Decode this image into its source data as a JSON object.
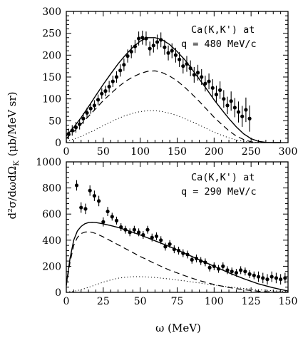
{
  "chart_data": [
    {
      "type": "scatter",
      "annotation": [
        "Ca(K,K') at",
        "q = 480 MeV/c"
      ],
      "xlim": [
        0,
        300
      ],
      "ylim": [
        0,
        300
      ],
      "xticks": [
        0,
        50,
        100,
        150,
        200,
        250,
        300
      ],
      "yticks": [
        0,
        50,
        100,
        150,
        200,
        250,
        300
      ],
      "xtick_labels": [
        "0",
        "50",
        "100",
        "150",
        "200",
        "250",
        "300"
      ],
      "ytick_labels": [
        "0",
        "50",
        "100",
        "150",
        "200",
        "250",
        "300"
      ],
      "grid": false,
      "series": [
        {
          "style": "points-with-error-bars",
          "x": [
            3,
            8,
            13,
            18,
            23,
            28,
            33,
            38,
            43,
            48,
            53,
            58,
            63,
            68,
            73,
            78,
            83,
            88,
            93,
            98,
            103,
            108,
            113,
            118,
            123,
            128,
            133,
            138,
            143,
            148,
            153,
            158,
            163,
            168,
            173,
            178,
            183,
            188,
            193,
            198,
            203,
            208,
            213,
            218,
            223,
            228,
            233,
            238,
            243,
            248
          ],
          "y": [
            20,
            28,
            35,
            42,
            55,
            68,
            78,
            85,
            98,
            112,
            118,
            128,
            140,
            150,
            165,
            178,
            198,
            208,
            220,
            238,
            240,
            238,
            215,
            222,
            230,
            235,
            218,
            205,
            210,
            200,
            190,
            175,
            180,
            170,
            155,
            160,
            150,
            135,
            140,
            125,
            110,
            120,
            100,
            85,
            95,
            80,
            70,
            60,
            75,
            55
          ],
          "err": [
            12,
            12,
            12,
            12,
            12,
            12,
            12,
            12,
            12,
            12,
            12,
            13,
            13,
            13,
            14,
            14,
            15,
            15,
            15,
            16,
            16,
            16,
            16,
            16,
            17,
            17,
            17,
            17,
            17,
            17,
            17,
            17,
            18,
            18,
            18,
            18,
            18,
            18,
            18,
            20,
            20,
            20,
            20,
            20,
            22,
            22,
            24,
            24,
            28,
            30
          ]
        },
        {
          "style": "solid",
          "x": [
            0,
            10,
            20,
            30,
            40,
            50,
            60,
            70,
            80,
            90,
            100,
            110,
            120,
            130,
            140,
            150,
            160,
            170,
            180,
            190,
            200,
            210,
            220,
            230,
            240,
            250,
            260,
            270,
            280,
            290
          ],
          "y": [
            15,
            35,
            57,
            82,
            108,
            133,
            157,
            180,
            200,
            218,
            232,
            240,
            240,
            235,
            224,
            208,
            190,
            168,
            145,
            122,
            98,
            76,
            55,
            36,
            20,
            9,
            3,
            0.5,
            0,
            0
          ]
        },
        {
          "style": "dashed",
          "x": [
            0,
            10,
            20,
            30,
            40,
            50,
            60,
            70,
            80,
            90,
            100,
            110,
            120,
            130,
            140,
            150,
            160,
            170,
            180,
            190,
            200,
            210,
            220,
            230,
            240,
            250,
            260
          ],
          "y": [
            10,
            25,
            42,
            60,
            78,
            96,
            112,
            127,
            140,
            150,
            158,
            163,
            164,
            160,
            152,
            141,
            127,
            111,
            94,
            76,
            58,
            42,
            27,
            15,
            7,
            2,
            0
          ]
        },
        {
          "style": "dotted",
          "x": [
            0,
            10,
            20,
            30,
            40,
            50,
            60,
            70,
            80,
            90,
            100,
            110,
            120,
            130,
            140,
            150,
            160,
            170,
            180,
            190,
            200,
            210,
            220,
            230,
            240,
            250,
            260
          ],
          "y": [
            3,
            8,
            14,
            22,
            30,
            39,
            47,
            55,
            62,
            67,
            71,
            73,
            73,
            71,
            67,
            62,
            55,
            48,
            40,
            32,
            24,
            17,
            11,
            6,
            3,
            1,
            0
          ]
        }
      ]
    },
    {
      "type": "scatter",
      "annotation": [
        "Ca(K,K') at",
        "q = 290 MeV/c"
      ],
      "xlim": [
        0,
        150
      ],
      "ylim": [
        0,
        1000
      ],
      "xticks": [
        0,
        25,
        50,
        75,
        100,
        125,
        150
      ],
      "yticks": [
        0,
        200,
        400,
        600,
        800,
        1000
      ],
      "xtick_labels": [
        "0",
        "25",
        "50",
        "75",
        "100",
        "125",
        "150"
      ],
      "ytick_labels": [
        "0",
        "200",
        "400",
        "600",
        "800",
        "1000"
      ],
      "xlabel": "ω (MeV)",
      "ylabel": "d²σ/dωdΩ",
      "ylabel_subscript": "K",
      "ylabel_units": "(μb/MeV sr)",
      "grid": false,
      "series": [
        {
          "style": "points-with-error-bars",
          "x": [
            7,
            10,
            13,
            16,
            19,
            22,
            25,
            28,
            31,
            34,
            37,
            40,
            43,
            46,
            49,
            52,
            55,
            58,
            61,
            64,
            67,
            70,
            73,
            76,
            79,
            82,
            85,
            88,
            91,
            94,
            97,
            100,
            103,
            106,
            109,
            112,
            115,
            118,
            121,
            124,
            127,
            130,
            133,
            136,
            139,
            142,
            145,
            148
          ],
          "y": [
            820,
            650,
            640,
            780,
            740,
            700,
            540,
            620,
            580,
            550,
            500,
            480,
            460,
            480,
            460,
            440,
            480,
            420,
            430,
            400,
            350,
            370,
            330,
            320,
            300,
            290,
            250,
            260,
            240,
            230,
            190,
            200,
            180,
            200,
            170,
            160,
            150,
            170,
            160,
            140,
            130,
            120,
            110,
            100,
            120,
            110,
            100,
            110
          ],
          "err": [
            40,
            40,
            40,
            40,
            40,
            40,
            35,
            35,
            30,
            30,
            30,
            30,
            30,
            30,
            30,
            30,
            30,
            30,
            30,
            30,
            30,
            30,
            30,
            30,
            30,
            30,
            30,
            30,
            30,
            30,
            30,
            30,
            30,
            30,
            30,
            30,
            30,
            30,
            30,
            30,
            30,
            40,
            40,
            40,
            40,
            40,
            40,
            40
          ]
        },
        {
          "style": "solid",
          "x": [
            0,
            2.5,
            5,
            7.5,
            10,
            12.5,
            15,
            17.5,
            20,
            25,
            30,
            35,
            40,
            45,
            50,
            55,
            60,
            70,
            80,
            90,
            100,
            110,
            120,
            130,
            140,
            150
          ],
          "y": [
            60,
            260,
            400,
            470,
            505,
            525,
            535,
            537,
            535,
            525,
            512,
            498,
            480,
            460,
            440,
            418,
            395,
            350,
            300,
            250,
            200,
            150,
            105,
            65,
            35,
            10
          ]
        },
        {
          "style": "dashed",
          "x": [
            0,
            2.5,
            5,
            7.5,
            10,
            12.5,
            15,
            17.5,
            20,
            25,
            30,
            35,
            40,
            45,
            50,
            55,
            60,
            70,
            80,
            90,
            100,
            110,
            120,
            130,
            140,
            150
          ],
          "y": [
            50,
            230,
            360,
            420,
            450,
            462,
            465,
            460,
            450,
            425,
            395,
            365,
            335,
            305,
            275,
            248,
            220,
            170,
            128,
            90,
            60,
            37,
            20,
            9,
            3,
            1
          ]
        },
        {
          "style": "dotted",
          "x": [
            0,
            5,
            10,
            15,
            20,
            25,
            30,
            35,
            40,
            45,
            50,
            55,
            60,
            70,
            80,
            90,
            100,
            110,
            120,
            130,
            140,
            150
          ],
          "y": [
            2,
            8,
            20,
            38,
            58,
            78,
            95,
            108,
            116,
            120,
            120,
            118,
            114,
            102,
            88,
            72,
            56,
            42,
            30,
            20,
            12,
            6
          ]
        }
      ]
    }
  ]
}
